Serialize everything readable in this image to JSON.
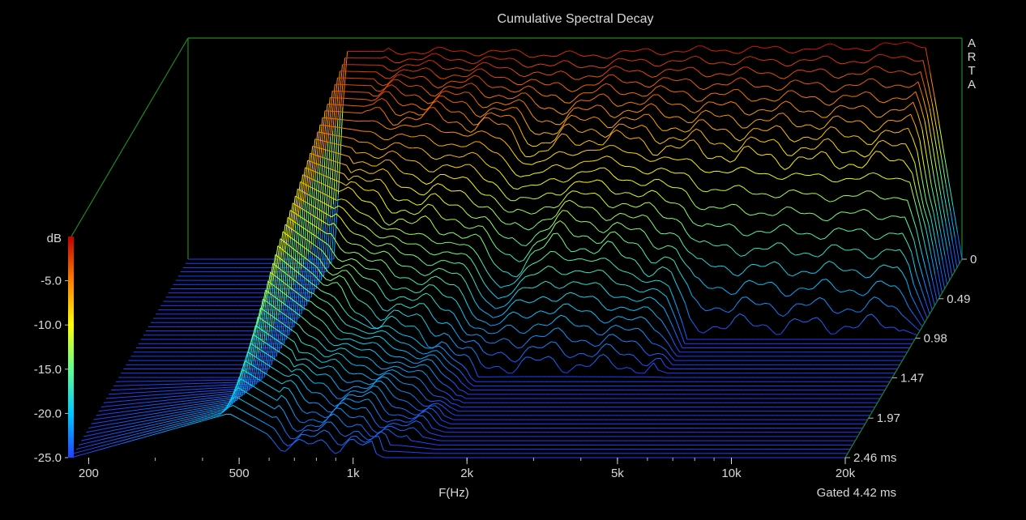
{
  "chart_data": {
    "type": "waterfall",
    "title": "Cumulative Spectral Decay",
    "xlabel": "F(Hz)",
    "zlabel": "dB",
    "x_scale": "log",
    "xlim": [
      180,
      20000
    ],
    "zlim": [
      -25,
      0
    ],
    "x_ticks": [
      {
        "value": 200,
        "label": "200"
      },
      {
        "value": 500,
        "label": "500"
      },
      {
        "value": 1000,
        "label": "1k"
      },
      {
        "value": 2000,
        "label": "2k"
      },
      {
        "value": 5000,
        "label": "5k"
      },
      {
        "value": 10000,
        "label": "10k"
      },
      {
        "value": 20000,
        "label": "20k"
      }
    ],
    "z_ticks": [
      {
        "value": -5,
        "label": "-5.0"
      },
      {
        "value": -10,
        "label": "-10.0"
      },
      {
        "value": -15,
        "label": "-15.0"
      },
      {
        "value": -20,
        "label": "-20.0"
      },
      {
        "value": -25,
        "label": "-25.0"
      }
    ],
    "time_ticks": [
      {
        "value": 0,
        "label": "0"
      },
      {
        "value": 0.49,
        "label": "0.49"
      },
      {
        "value": 0.98,
        "label": "0.98"
      },
      {
        "value": 1.47,
        "label": "1.47"
      },
      {
        "value": 1.97,
        "label": "1.97"
      },
      {
        "value": 2.46,
        "label": "2.46 ms"
      }
    ],
    "time_range_ms": [
      0,
      2.46
    ],
    "slice_count": 48,
    "note": "Gated 4.42 ms",
    "watermark": "ARTA",
    "colorbar": [
      "#2040ff",
      "#00c8ff",
      "#60ff90",
      "#ffff00",
      "#ff8000",
      "#c00000"
    ],
    "box_color": "#1e8a1e",
    "slice_profiles": [
      {
        "t_ms": 0.0,
        "points": [
          [
            180,
            -25
          ],
          [
            440,
            -25
          ],
          [
            470,
            -1.5
          ],
          [
            1000,
            -1.5
          ],
          [
            1500,
            -1.8
          ],
          [
            2000,
            -2
          ],
          [
            3000,
            -1.5
          ],
          [
            5000,
            -1.3
          ],
          [
            8000,
            -1.2
          ],
          [
            12000,
            -1.0
          ],
          [
            16000,
            -0.5
          ],
          [
            20000,
            -25
          ]
        ]
      },
      {
        "t_ms": 0.49,
        "points": [
          [
            180,
            -25
          ],
          [
            440,
            -25
          ],
          [
            470,
            -4
          ],
          [
            1000,
            -5
          ],
          [
            1400,
            -6
          ],
          [
            1700,
            -9
          ],
          [
            2000,
            -8
          ],
          [
            2500,
            -7
          ],
          [
            3500,
            -8
          ],
          [
            5000,
            -9
          ],
          [
            10000,
            -10
          ],
          [
            17000,
            -10
          ],
          [
            20000,
            -25
          ]
        ]
      },
      {
        "t_ms": 0.98,
        "points": [
          [
            180,
            -25
          ],
          [
            440,
            -25
          ],
          [
            470,
            -7
          ],
          [
            900,
            -13
          ],
          [
            1300,
            -14
          ],
          [
            1600,
            -19
          ],
          [
            2200,
            -15
          ],
          [
            3000,
            -16
          ],
          [
            4500,
            -19
          ],
          [
            5000,
            -25
          ],
          [
            20000,
            -25
          ]
        ]
      },
      {
        "t_ms": 1.47,
        "points": [
          [
            180,
            -25
          ],
          [
            440,
            -25
          ],
          [
            470,
            -10
          ],
          [
            800,
            -18
          ],
          [
            1300,
            -21
          ],
          [
            1600,
            -25
          ],
          [
            20000,
            -25
          ]
        ]
      },
      {
        "t_ms": 2.46,
        "points": [
          [
            180,
            -25
          ],
          [
            470,
            -20
          ],
          [
            700,
            -24
          ],
          [
            1000,
            -23
          ],
          [
            1200,
            -25
          ],
          [
            20000,
            -25
          ]
        ]
      }
    ]
  }
}
